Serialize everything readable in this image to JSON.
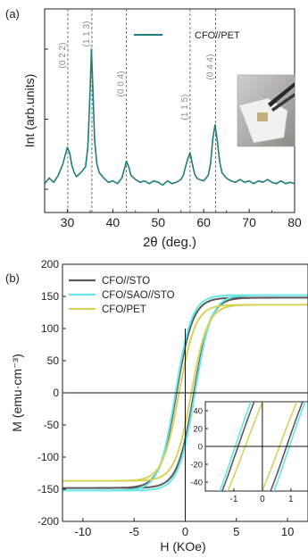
{
  "chart_data": [
    {
      "panel_label": "(a)",
      "type": "line",
      "xlabel": "2θ (deg.)",
      "ylabel": "Int (arb.units)",
      "xlim": [
        25,
        80
      ],
      "xticks": [
        30,
        40,
        50,
        60,
        70,
        80
      ],
      "y_tick_labels_shown": false,
      "grid": false,
      "legend": {
        "position": "top-right",
        "entries": [
          "CFO//PET"
        ]
      },
      "line_color": "#1f7d7a",
      "inset": "photograph of flexible CFO//PET film held by tweezers",
      "peaks": [
        {
          "label": "(0 2 2)",
          "x": 30.1
        },
        {
          "label": "(1 1 3)",
          "x": 35.4
        },
        {
          "label": "(0 0 4)",
          "x": 43.0
        },
        {
          "label": "(1 1 5)",
          "x": 57.0
        },
        {
          "label": "(0 4 4)",
          "x": 62.6
        }
      ],
      "series": [
        {
          "name": "CFO//PET",
          "x": [
            25,
            26,
            27,
            28,
            28.5,
            29,
            29.5,
            30,
            30.5,
            31,
            31.5,
            32,
            33,
            34,
            34.5,
            35,
            35.3,
            35.6,
            36,
            36.5,
            37,
            38,
            39,
            40,
            41,
            42,
            42.5,
            43,
            43.5,
            44,
            45,
            46,
            47,
            48,
            49,
            50,
            51,
            52,
            53,
            54,
            55,
            55.5,
            56,
            56.5,
            57,
            57.5,
            58,
            58.5,
            59,
            60,
            61,
            61.5,
            62,
            62.5,
            63,
            63.5,
            64,
            65,
            66,
            67,
            68,
            69,
            70,
            71,
            72,
            73,
            74,
            75,
            76,
            77,
            78,
            79,
            80
          ],
          "y": [
            0.04,
            0.08,
            0.05,
            0.1,
            0.14,
            0.18,
            0.24,
            0.3,
            0.26,
            0.17,
            0.12,
            0.09,
            0.12,
            0.16,
            0.3,
            0.7,
            1.0,
            0.72,
            0.35,
            0.18,
            0.12,
            0.08,
            0.05,
            0.06,
            0.04,
            0.08,
            0.14,
            0.2,
            0.16,
            0.1,
            0.07,
            0.05,
            0.06,
            0.04,
            0.06,
            0.05,
            0.03,
            0.06,
            0.04,
            0.05,
            0.07,
            0.1,
            0.16,
            0.22,
            0.26,
            0.18,
            0.11,
            0.08,
            0.07,
            0.06,
            0.1,
            0.18,
            0.36,
            0.46,
            0.34,
            0.2,
            0.12,
            0.08,
            0.06,
            0.05,
            0.07,
            0.05,
            0.06,
            0.04,
            0.06,
            0.05,
            0.07,
            0.05,
            0.04,
            0.06,
            0.04,
            0.05,
            0.04
          ]
        }
      ]
    },
    {
      "panel_label": "(b)",
      "type": "line",
      "xlabel": "H (KOe)",
      "ylabel": "M (emu·cm⁻³)",
      "xlim": [
        -12,
        12
      ],
      "ylim": [
        -200,
        200
      ],
      "xticks": [
        -10,
        -5,
        0,
        5,
        10
      ],
      "yticks": [
        -200,
        -150,
        -100,
        -50,
        0,
        50,
        100,
        150,
        200
      ],
      "grid": false,
      "legend": {
        "position": "top-left"
      },
      "series": [
        {
          "name": "CFO//STO",
          "color": "#5a5a5a",
          "Ms": 148,
          "Hc": 0.85
        },
        {
          "name": "CFO/SAO//STO",
          "color": "#66e6e6",
          "Ms": 152,
          "Hc": 0.95
        },
        {
          "name": "CFO/PET",
          "color": "#d7d25a",
          "Ms": 137,
          "Hc": 0.6
        }
      ],
      "inset": {
        "xlim": [
          -2,
          1.6
        ],
        "ylim": [
          -50,
          50
        ],
        "xticks": [
          -1,
          0,
          1
        ],
        "yticks": [
          -40,
          -20,
          0,
          20,
          40
        ],
        "position": "bottom-right"
      }
    }
  ]
}
